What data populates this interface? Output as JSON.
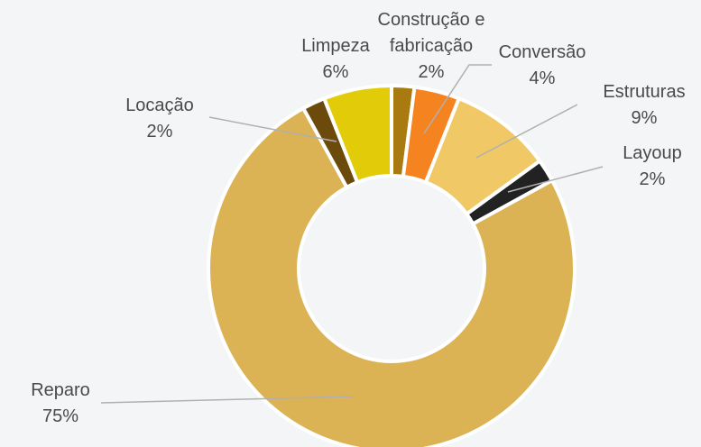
{
  "chart_data": {
    "type": "donut",
    "categories": [
      "Construção e fabricação",
      "Conversão",
      "Estruturas",
      "Layoup",
      "Reparo",
      "Locação",
      "Limpeza"
    ],
    "values": [
      2,
      4,
      9,
      2,
      75,
      2,
      6
    ],
    "value_labels": [
      "2%",
      "4%",
      "9%",
      "2%",
      "75%",
      "2%",
      "6%"
    ],
    "colors": [
      "#a87a10",
      "#f5831f",
      "#f0c866",
      "#222222",
      "#dbb354",
      "#6b4a0c",
      "#e2cc0a"
    ]
  }
}
